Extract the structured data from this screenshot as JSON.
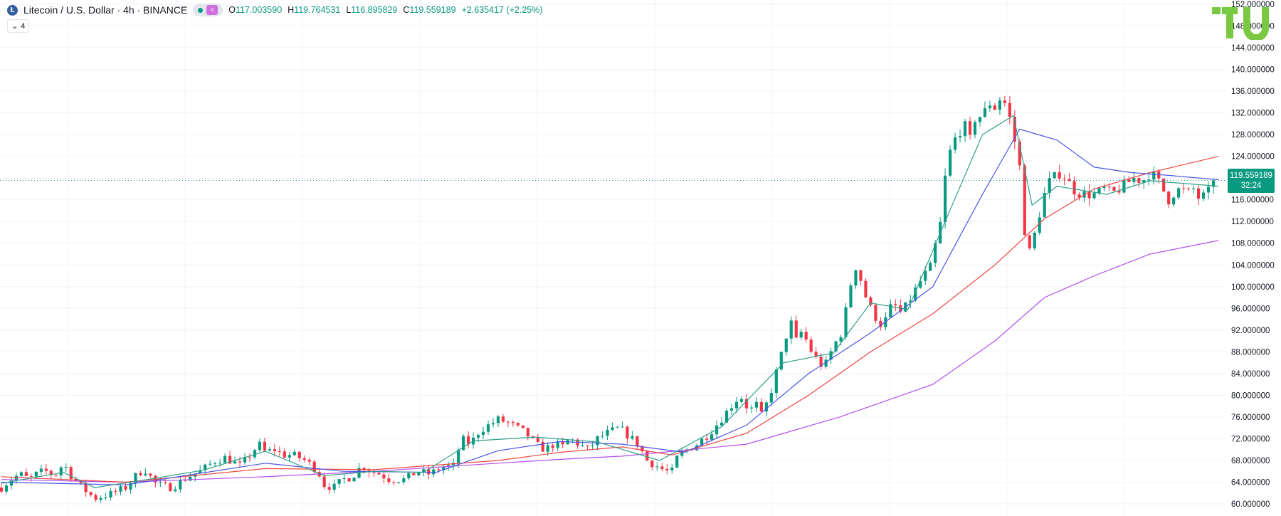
{
  "header": {
    "title": "Litecoin / U.S. Dollar · 4h · BINANCE",
    "symbol_letter": "Ł",
    "o_label": "O",
    "o_value": "117.003590",
    "h_label": "H",
    "h_value": "119.764531",
    "l_label": "L",
    "l_value": "116.895829",
    "c_label": "C",
    "c_value": "119.559189",
    "change": "+2.635417 (+2.25%)"
  },
  "indicators": {
    "toggle_icon": "chevron-down-icon",
    "count": "4"
  },
  "price_label": {
    "price": "119.559189",
    "countdown": "32:24"
  },
  "colors": {
    "up": "#089981",
    "down": "#f23645",
    "ema_fast": "#2fa08a",
    "ema_mid": "#4a55e6",
    "ema_slow": "#f0443f",
    "ema_long": "#b44ded",
    "logo": "#7ac943",
    "grid": "#f0f3fa"
  },
  "chart_data": {
    "type": "candlestick",
    "symbol": "LTC/USD",
    "interval": "4h",
    "exchange": "BINANCE",
    "ylim": [
      60,
      152
    ],
    "y_ticks": [
      "60.000000",
      "64.000000",
      "68.000000",
      "72.000000",
      "76.000000",
      "80.000000",
      "84.000000",
      "88.000000",
      "92.000000",
      "96.000000",
      "100.000000",
      "104.000000",
      "108.000000",
      "112.000000",
      "116.000000",
      "120.000000",
      "124.000000",
      "128.000000",
      "132.000000",
      "136.000000",
      "140.000000",
      "144.000000",
      "148.000000",
      "152.000000"
    ],
    "price_path": [
      [
        0,
        63
      ],
      [
        15,
        64.5
      ],
      [
        30,
        65.5
      ],
      [
        45,
        64.5
      ],
      [
        60,
        65.8
      ],
      [
        75,
        66
      ],
      [
        85,
        65
      ],
      [
        100,
        67.5
      ],
      [
        110,
        65.5
      ],
      [
        130,
        63
      ],
      [
        150,
        61
      ],
      [
        175,
        61.8
      ],
      [
        200,
        63
      ],
      [
        215,
        65
      ],
      [
        230,
        66.5
      ],
      [
        250,
        63.5
      ],
      [
        275,
        63
      ],
      [
        300,
        65
      ],
      [
        320,
        66
      ],
      [
        345,
        68
      ],
      [
        360,
        68.5
      ],
      [
        385,
        67
      ],
      [
        400,
        69
      ],
      [
        415,
        71
      ],
      [
        425,
        69.5
      ],
      [
        440,
        70
      ],
      [
        455,
        69
      ],
      [
        470,
        69
      ],
      [
        490,
        68
      ],
      [
        510,
        66
      ],
      [
        520,
        63.5
      ],
      [
        535,
        63
      ],
      [
        550,
        64.5
      ],
      [
        565,
        65
      ],
      [
        580,
        67
      ],
      [
        595,
        66
      ],
      [
        610,
        65.5
      ],
      [
        625,
        64.5
      ],
      [
        650,
        64.5
      ],
      [
        670,
        66
      ],
      [
        690,
        65.5
      ],
      [
        710,
        66.8
      ],
      [
        730,
        67
      ],
      [
        740,
        72
      ],
      [
        755,
        71
      ],
      [
        770,
        73.5
      ],
      [
        785,
        74.5
      ],
      [
        800,
        75.5
      ],
      [
        815,
        75
      ],
      [
        830,
        74
      ],
      [
        845,
        73
      ],
      [
        860,
        71
      ],
      [
        875,
        70
      ],
      [
        890,
        71
      ],
      [
        905,
        70.5
      ],
      [
        915,
        72
      ],
      [
        930,
        71
      ],
      [
        945,
        70
      ],
      [
        960,
        72
      ],
      [
        975,
        73
      ],
      [
        995,
        74
      ],
      [
        1010,
        72.5
      ],
      [
        1025,
        71
      ],
      [
        1040,
        68
      ],
      [
        1055,
        67
      ],
      [
        1070,
        66
      ],
      [
        1080,
        66
      ],
      [
        1090,
        69
      ],
      [
        1105,
        70
      ],
      [
        1120,
        71
      ],
      [
        1140,
        73
      ],
      [
        1155,
        75
      ],
      [
        1175,
        78
      ],
      [
        1190,
        80
      ],
      [
        1205,
        77
      ],
      [
        1215,
        78.5
      ],
      [
        1225,
        76
      ],
      [
        1240,
        81
      ],
      [
        1250,
        85
      ],
      [
        1260,
        89
      ],
      [
        1270,
        94
      ],
      [
        1280,
        90
      ],
      [
        1290,
        92
      ],
      [
        1300,
        89
      ],
      [
        1310,
        87
      ],
      [
        1325,
        85
      ],
      [
        1340,
        89
      ],
      [
        1355,
        92
      ],
      [
        1365,
        99
      ],
      [
        1375,
        104
      ],
      [
        1385,
        101
      ],
      [
        1395,
        97
      ],
      [
        1405,
        95
      ],
      [
        1415,
        93
      ],
      [
        1425,
        94
      ],
      [
        1435,
        97
      ],
      [
        1450,
        95
      ],
      [
        1460,
        97
      ],
      [
        1475,
        100
      ],
      [
        1485,
        102
      ],
      [
        1495,
        103
      ],
      [
        1505,
        108
      ],
      [
        1515,
        113
      ],
      [
        1520,
        120
      ],
      [
        1530,
        126
      ],
      [
        1540,
        128
      ],
      [
        1550,
        130
      ],
      [
        1560,
        127
      ],
      [
        1570,
        132
      ],
      [
        1580,
        131
      ],
      [
        1590,
        134
      ],
      [
        1600,
        133
      ],
      [
        1610,
        135
      ],
      [
        1620,
        133
      ],
      [
        1630,
        128
      ],
      [
        1640,
        122
      ],
      [
        1647,
        111
      ],
      [
        1655,
        106
      ],
      [
        1665,
        110
      ],
      [
        1675,
        115
      ],
      [
        1685,
        119
      ],
      [
        1695,
        120
      ],
      [
        1705,
        121
      ],
      [
        1715,
        120
      ],
      [
        1725,
        118
      ],
      [
        1740,
        117
      ],
      [
        1752,
        117
      ],
      [
        1764,
        117
      ],
      [
        1776,
        118
      ],
      [
        1788,
        117
      ],
      [
        1800,
        118
      ],
      [
        1812,
        119
      ],
      [
        1825,
        120
      ],
      [
        1838,
        119.5
      ],
      [
        1850,
        121
      ],
      [
        1860,
        120
      ],
      [
        1870,
        118
      ],
      [
        1880,
        116
      ],
      [
        1890,
        117.5
      ],
      [
        1900,
        118
      ],
      [
        1910,
        117
      ],
      [
        1920,
        118
      ],
      [
        1930,
        116
      ],
      [
        1940,
        117
      ],
      [
        1950,
        118
      ],
      [
        1960,
        119.56
      ]
    ],
    "ema_fast": [
      [
        0,
        63.8
      ],
      [
        100,
        65.8
      ],
      [
        150,
        63.0
      ],
      [
        225,
        64.3
      ],
      [
        325,
        66.2
      ],
      [
        425,
        69.7
      ],
      [
        520,
        65.2
      ],
      [
        600,
        66.0
      ],
      [
        680,
        65.8
      ],
      [
        760,
        71.6
      ],
      [
        860,
        72.3
      ],
      [
        960,
        71.4
      ],
      [
        1060,
        68.0
      ],
      [
        1160,
        74.2
      ],
      [
        1260,
        86.0
      ],
      [
        1340,
        87.8
      ],
      [
        1400,
        97.0
      ],
      [
        1460,
        95.8
      ],
      [
        1520,
        112.0
      ],
      [
        1580,
        128.0
      ],
      [
        1630,
        131.5
      ],
      [
        1660,
        115.0
      ],
      [
        1700,
        118.5
      ],
      [
        1780,
        117.0
      ],
      [
        1850,
        119.5
      ],
      [
        1960,
        118.5
      ]
    ],
    "ema_mid": [
      [
        0,
        64.0
      ],
      [
        200,
        63.5
      ],
      [
        425,
        67.5
      ],
      [
        550,
        66.0
      ],
      [
        700,
        65.8
      ],
      [
        800,
        69.8
      ],
      [
        900,
        71.5
      ],
      [
        1000,
        71.0
      ],
      [
        1100,
        69.5
      ],
      [
        1200,
        74.5
      ],
      [
        1300,
        84.0
      ],
      [
        1400,
        91.5
      ],
      [
        1500,
        100.0
      ],
      [
        1580,
        117.0
      ],
      [
        1640,
        129.0
      ],
      [
        1700,
        127.0
      ],
      [
        1760,
        122.0
      ],
      [
        1820,
        121.0
      ],
      [
        1880,
        120.5
      ],
      [
        1960,
        119.7
      ]
    ],
    "ema_slow": [
      [
        0,
        65.0
      ],
      [
        200,
        64.0
      ],
      [
        425,
        66.5
      ],
      [
        600,
        66.3
      ],
      [
        800,
        68.0
      ],
      [
        900,
        69.5
      ],
      [
        1000,
        70.5
      ],
      [
        1080,
        69.0
      ],
      [
        1200,
        73.0
      ],
      [
        1300,
        80.0
      ],
      [
        1400,
        88.0
      ],
      [
        1500,
        95.0
      ],
      [
        1600,
        104.0
      ],
      [
        1680,
        112.5
      ],
      [
        1760,
        118.0
      ],
      [
        1850,
        121.0
      ],
      [
        1960,
        124.0
      ]
    ],
    "ema_long": [
      [
        0,
        64.5
      ],
      [
        200,
        64.0
      ],
      [
        425,
        65.0
      ],
      [
        600,
        66.0
      ],
      [
        800,
        67.5
      ],
      [
        900,
        68.2
      ],
      [
        1000,
        68.8
      ],
      [
        1200,
        71.0
      ],
      [
        1350,
        76.0
      ],
      [
        1500,
        82.0
      ],
      [
        1600,
        90.0
      ],
      [
        1680,
        98.0
      ],
      [
        1760,
        102.0
      ],
      [
        1850,
        106.0
      ],
      [
        1960,
        108.5
      ]
    ],
    "last_price": 119.559189
  }
}
